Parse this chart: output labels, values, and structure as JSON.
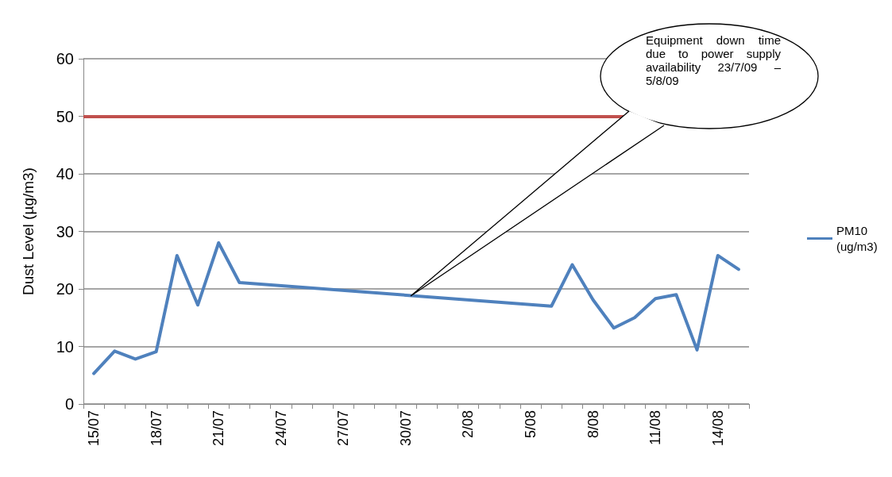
{
  "chart_data": {
    "type": "line",
    "ylabel": "Dust Level (µg/m3)",
    "categories": [
      "15/07",
      null,
      null,
      "18/07",
      null,
      null,
      "21/07",
      null,
      null,
      "24/07",
      null,
      null,
      "27/07",
      null,
      null,
      "30/07",
      null,
      null,
      "2/08",
      null,
      null,
      "5/08",
      null,
      null,
      "8/08",
      null,
      null,
      "11/08",
      null,
      null,
      "14/08",
      null
    ],
    "series": [
      {
        "name": "PM10 (ug/m3)",
        "color": "#4f81bd",
        "values": [
          5.3,
          9.2,
          7.8,
          9.1,
          25.8,
          17.2,
          28.0,
          21.1,
          null,
          null,
          null,
          null,
          null,
          null,
          null,
          null,
          null,
          null,
          null,
          null,
          null,
          null,
          17.0,
          24.2,
          18.1,
          13.2,
          15.0,
          18.3,
          19.0,
          9.4,
          25.8,
          23.4
        ]
      }
    ],
    "ylim": [
      0,
      60
    ],
    "yticks": [
      0,
      10,
      20,
      30,
      40,
      50,
      60
    ],
    "grid": "y",
    "legend": "right",
    "marker": "none",
    "line_style": "solid",
    "ref_lines": [
      {
        "axis": "y",
        "value": 50,
        "color": "#c0504d"
      }
    ],
    "annotations": [
      "Equipment down time due to power supply availability 23/7/09 – 5/8/09"
    ]
  }
}
